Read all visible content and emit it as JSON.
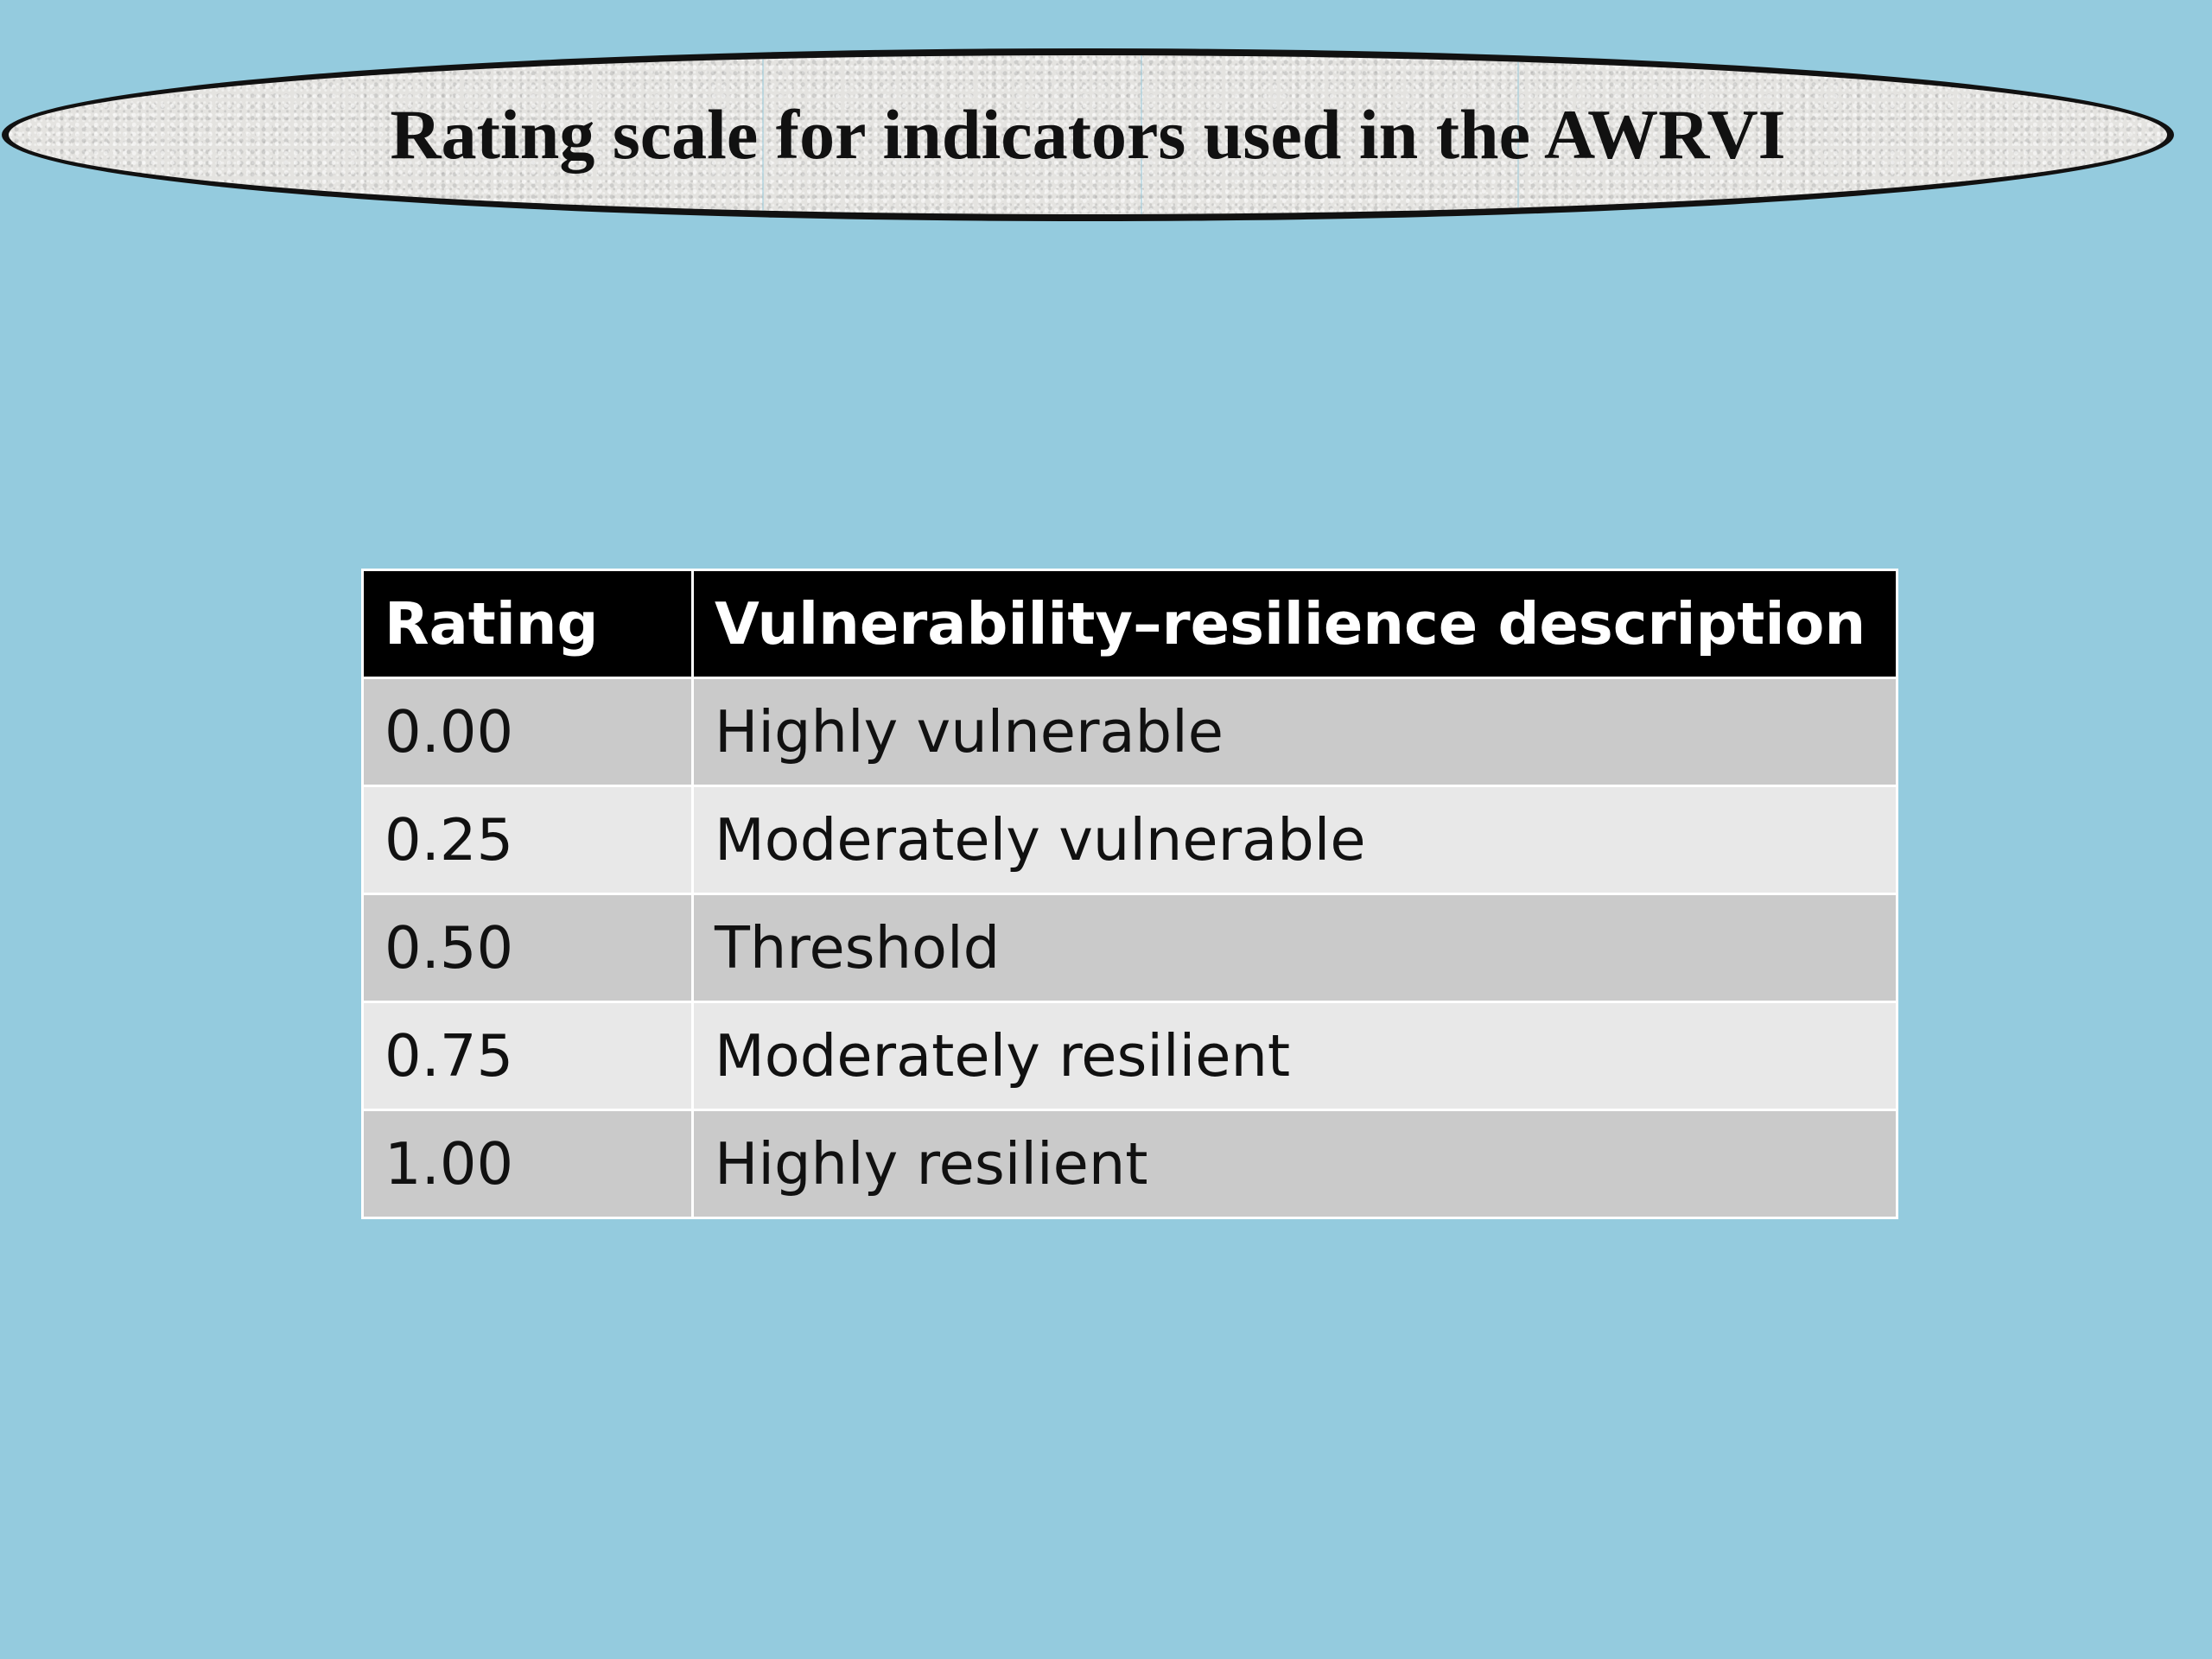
{
  "slide": {
    "title": "Rating scale for indicators used in the AWRVI",
    "colors": {
      "background": "#94cbde",
      "header_background": "#000000",
      "header_text": "#ffffff",
      "row_dark": "#cacaca",
      "row_light": "#e8e8e8"
    }
  },
  "table": {
    "headers": {
      "rating": "Rating",
      "description": "Vulnerability–resilience description"
    },
    "rows": [
      {
        "rating": "0.00",
        "description": "Highly vulnerable"
      },
      {
        "rating": "0.25",
        "description": "Moderately vulnerable"
      },
      {
        "rating": "0.50",
        "description": "Threshold"
      },
      {
        "rating": "0.75",
        "description": "Moderately resilient"
      },
      {
        "rating": "1.00",
        "description": "Highly resilient"
      }
    ]
  }
}
